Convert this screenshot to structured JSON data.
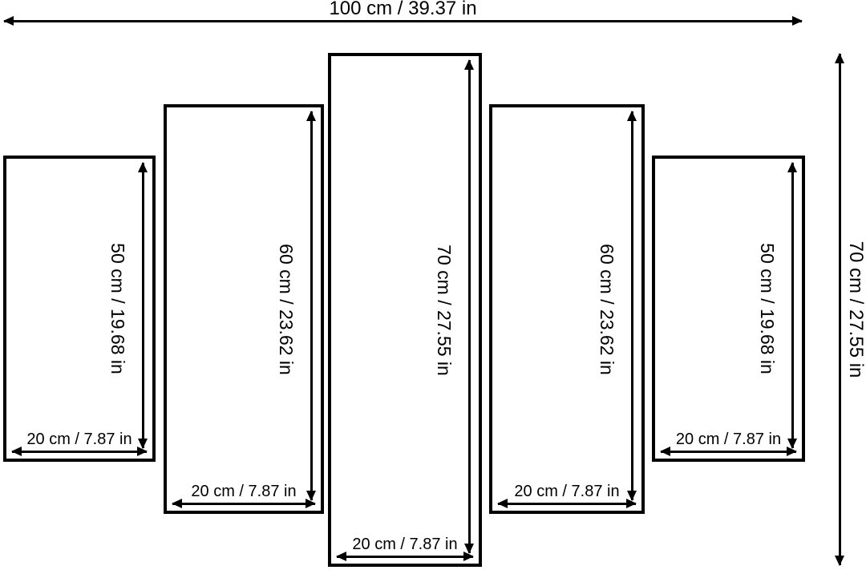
{
  "overall": {
    "width_label": "100 cm / 39.37 in",
    "height_label": "70 cm / 27.55 in"
  },
  "panels": [
    {
      "name": "panel-1",
      "height_label": "50 cm / 19.68 in",
      "width_label": "20 cm / 7.87 in"
    },
    {
      "name": "panel-2",
      "height_label": "60 cm / 23.62 in",
      "width_label": "20 cm / 7.87 in"
    },
    {
      "name": "panel-3",
      "height_label": "70 cm / 27.55 in",
      "width_label": "20 cm / 7.87 in"
    },
    {
      "name": "panel-4",
      "height_label": "60 cm / 23.62 in",
      "width_label": "20 cm / 7.87 in"
    },
    {
      "name": "panel-5",
      "height_label": "50 cm / 19.68 in",
      "width_label": "20 cm / 7.87 in"
    }
  ],
  "colors": {
    "line": "#000000",
    "background": "#ffffff"
  }
}
